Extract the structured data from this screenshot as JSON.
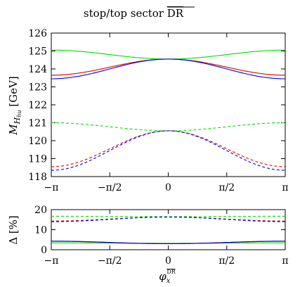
{
  "chart_data": [
    {
      "type": "line",
      "title": "stop/top sector DR-bar",
      "title_main": "stop/top sector ",
      "title_overline": "DR",
      "ylabel": "M_{H_{hu}} [GeV]",
      "ylabel_main": "M",
      "ylabel_sub": "H",
      "ylabel_subsub": "hu",
      "ylabel_unit": " [GeV]",
      "xlim": [
        -3.14159,
        3.14159
      ],
      "ylim": [
        118,
        126
      ],
      "xticks": [
        -3.14159,
        -1.5708,
        0,
        1.5708,
        3.14159
      ],
      "xtick_labels": [
        "−π",
        "−π/2",
        "0",
        "π/2",
        "π"
      ],
      "yticks": [
        118,
        119,
        120,
        121,
        122,
        123,
        124,
        125,
        126
      ],
      "ytick_labels": [
        "118",
        "119",
        "120",
        "121",
        "122",
        "123",
        "124",
        "125",
        "126"
      ],
      "grid": false,
      "curves": [
        {
          "color": "#00dd00",
          "dash": false,
          "shape": "minimum",
          "center": 124.55,
          "edge": 125.05
        },
        {
          "color": "#dd0000",
          "dash": false,
          "shape": "maximum",
          "center": 124.55,
          "edge": 123.65
        },
        {
          "color": "#0000dd",
          "dash": false,
          "shape": "maximum",
          "center": 124.55,
          "edge": 123.45
        },
        {
          "color": "#00dd00",
          "dash": true,
          "shape": "minimum",
          "center": 120.55,
          "edge": 121.0
        },
        {
          "color": "#dd0000",
          "dash": true,
          "shape": "maximum",
          "center": 120.55,
          "edge": 118.55
        },
        {
          "color": "#0000dd",
          "dash": true,
          "shape": "maximum",
          "center": 120.55,
          "edge": 118.35
        }
      ]
    },
    {
      "type": "line",
      "ylabel": "Δ [%]",
      "xlabel": "φ_x^{DR-bar}",
      "xlabel_main": "φ",
      "xlabel_sub": "x",
      "xlabel_sup": "DR",
      "xlim": [
        -3.14159,
        3.14159
      ],
      "ylim": [
        0,
        20
      ],
      "xticks": [
        -3.14159,
        -1.5708,
        0,
        1.5708,
        3.14159
      ],
      "xtick_labels": [
        "−π",
        "−π/2",
        "0",
        "π/2",
        "π"
      ],
      "yticks": [
        0,
        10,
        20
      ],
      "ytick_labels": [
        "0",
        "10",
        "20"
      ],
      "grid": false,
      "curves": [
        {
          "color": "#00dd00",
          "dash": true,
          "shape": "flat",
          "center": 16.5,
          "edge": 16.7
        },
        {
          "color": "#dd0000",
          "dash": true,
          "shape": "maximum",
          "center": 16.3,
          "edge": 14.3
        },
        {
          "color": "#0000dd",
          "dash": true,
          "shape": "maximum",
          "center": 16.3,
          "edge": 14.0
        },
        {
          "color": "#00dd00",
          "dash": false,
          "shape": "flat",
          "center": 3.2,
          "edge": 3.4
        },
        {
          "color": "#dd0000",
          "dash": false,
          "shape": "minimum",
          "center": 3.0,
          "edge": 4.2
        },
        {
          "color": "#0000dd",
          "dash": false,
          "shape": "minimum",
          "center": 3.0,
          "edge": 4.3
        }
      ]
    }
  ]
}
